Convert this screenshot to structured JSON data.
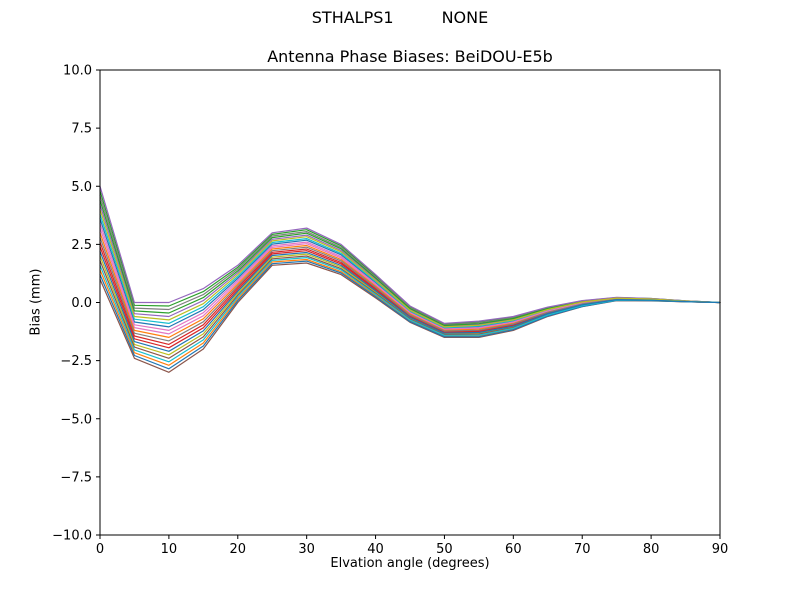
{
  "figure": {
    "background": "#ffffff",
    "suptitle": {
      "left": "STHALPS1",
      "right": "NONE"
    }
  },
  "chart_data": {
    "type": "line",
    "suptitle": "STHALPS1        NONE",
    "title": "Antenna Phase Biases: BeiDOU-E5b",
    "xlabel": "Elvation angle (degrees)",
    "ylabel": "Bias (mm)",
    "xlim": [
      0,
      90
    ],
    "ylim": [
      -10.0,
      10.0
    ],
    "grid": false,
    "legend": "none",
    "frame_color": "#000000",
    "xtick_values": [
      0,
      10,
      20,
      30,
      40,
      50,
      60,
      70,
      80,
      90
    ],
    "xtick_labels": [
      "0",
      "10",
      "20",
      "30",
      "40",
      "50",
      "60",
      "70",
      "80",
      "90"
    ],
    "ytick_values": [
      10.0,
      7.5,
      5.0,
      2.5,
      0.0,
      -2.5,
      -5.0,
      -7.5,
      -10.0
    ],
    "ytick_labels": [
      "10.0",
      "7.5",
      "5.0",
      "2.5",
      "0.0",
      "−2.5",
      "−5.0",
      "−7.5",
      "−10.0"
    ],
    "x": [
      0,
      5,
      10,
      15,
      20,
      25,
      30,
      35,
      40,
      45,
      50,
      55,
      60,
      65,
      70,
      75,
      80,
      85,
      90
    ],
    "series": [
      {
        "name": "line-01",
        "color": "#1f77b4",
        "values": [
          3.6,
          -0.84,
          -1.05,
          -0.31,
          1.04,
          2.51,
          2.68,
          2.05,
          0.85,
          -0.4,
          -1.11,
          -1.05,
          -0.81,
          -0.34,
          -0.01,
          0.17,
          0.14,
          0.06,
          0.0
        ]
      },
      {
        "name": "line-02",
        "color": "#ff7f0e",
        "values": [
          1.4,
          -2.16,
          -2.7,
          -1.74,
          0.16,
          1.74,
          1.85,
          1.33,
          0.3,
          -0.78,
          -1.44,
          -1.43,
          -1.14,
          -0.56,
          -0.15,
          0.09,
          0.08,
          0.03,
          0.0
        ]
      },
      {
        "name": "line-03",
        "color": "#2ca02c",
        "values": [
          4.8,
          -0.12,
          -0.15,
          0.47,
          1.52,
          2.93,
          3.13,
          2.44,
          1.15,
          -0.19,
          -0.93,
          -0.84,
          -0.63,
          -0.22,
          0.07,
          0.21,
          0.17,
          0.07,
          0.0
        ]
      },
      {
        "name": "line-04",
        "color": "#d62728",
        "values": [
          2.6,
          -1.44,
          -1.8,
          -0.96,
          0.64,
          2.16,
          2.3,
          1.72,
          0.6,
          -0.57,
          -1.26,
          -1.22,
          -0.96,
          -0.44,
          -0.08,
          0.14,
          0.11,
          0.05,
          0.0
        ]
      },
      {
        "name": "line-05",
        "color": "#9467bd",
        "values": [
          4.2,
          -0.48,
          -0.6,
          0.08,
          1.28,
          2.72,
          2.9,
          2.24,
          1.0,
          -0.29,
          -1.02,
          -0.94,
          -0.72,
          -0.28,
          0.03,
          0.19,
          0.15,
          0.06,
          0.0
        ]
      },
      {
        "name": "line-06",
        "color": "#8c564b",
        "values": [
          1.0,
          -2.4,
          -3.0,
          -2.0,
          0.0,
          1.6,
          1.7,
          1.2,
          0.2,
          -0.85,
          -1.5,
          -1.5,
          -1.2,
          -0.6,
          -0.18,
          0.08,
          0.07,
          0.03,
          0.0
        ]
      },
      {
        "name": "line-07",
        "color": "#e377c2",
        "values": [
          3.2,
          -1.08,
          -1.35,
          -0.57,
          0.88,
          2.37,
          2.53,
          1.92,
          0.75,
          -0.47,
          -1.17,
          -1.12,
          -0.87,
          -0.38,
          -0.04,
          0.16,
          0.13,
          0.05,
          0.0
        ]
      },
      {
        "name": "line-08",
        "color": "#7f7f7f",
        "values": [
          4.6,
          -0.24,
          -0.3,
          0.34,
          1.44,
          2.86,
          3.05,
          2.37,
          1.1,
          -0.22,
          -0.96,
          -0.87,
          -0.66,
          -0.24,
          0.05,
          0.21,
          0.16,
          0.07,
          0.0
        ]
      },
      {
        "name": "line-09",
        "color": "#bcbd22",
        "values": [
          2.0,
          -1.8,
          -2.25,
          -1.35,
          0.4,
          1.95,
          2.08,
          1.53,
          0.45,
          -0.68,
          -1.35,
          -1.33,
          -1.05,
          -0.5,
          -0.12,
          0.12,
          0.1,
          0.04,
          0.0
        ]
      },
      {
        "name": "line-10",
        "color": "#17becf",
        "values": [
          3.8,
          -0.72,
          -0.9,
          -0.18,
          1.12,
          2.58,
          2.75,
          2.11,
          0.9,
          -0.36,
          -1.08,
          -1.01,
          -0.78,
          -0.32,
          0.0,
          0.18,
          0.14,
          0.06,
          0.0
        ]
      },
      {
        "name": "line-11",
        "color": "#1f77b4",
        "values": [
          1.2,
          -2.28,
          -2.85,
          -1.87,
          0.08,
          1.67,
          1.78,
          1.27,
          0.25,
          -0.82,
          -1.47,
          -1.47,
          -1.17,
          -0.58,
          -0.17,
          0.09,
          0.08,
          0.03,
          0.0
        ]
      },
      {
        "name": "line-12",
        "color": "#ff7f0e",
        "values": [
          3.0,
          -1.2,
          -1.5,
          -0.7,
          0.8,
          2.3,
          2.45,
          1.85,
          0.7,
          -0.5,
          -1.2,
          -1.15,
          -0.9,
          -0.4,
          -0.05,
          0.15,
          0.12,
          0.05,
          0.0
        ]
      },
      {
        "name": "line-13",
        "color": "#2ca02c",
        "values": [
          4.4,
          -0.36,
          -0.45,
          0.21,
          1.36,
          2.79,
          2.98,
          2.31,
          1.05,
          -0.26,
          -0.99,
          -0.91,
          -0.69,
          -0.26,
          0.04,
          0.2,
          0.16,
          0.06,
          0.0
        ]
      },
      {
        "name": "line-14",
        "color": "#d62728",
        "values": [
          2.4,
          -1.56,
          -1.95,
          -1.09,
          0.56,
          2.09,
          2.23,
          1.66,
          0.55,
          -0.61,
          -1.29,
          -1.26,
          -0.99,
          -0.46,
          -0.09,
          0.13,
          0.11,
          0.04,
          0.0
        ]
      },
      {
        "name": "line-15",
        "color": "#9467bd",
        "values": [
          5.0,
          0.0,
          0.0,
          0.6,
          1.6,
          3.0,
          3.2,
          2.5,
          1.2,
          -0.15,
          -0.9,
          -0.8,
          -0.6,
          -0.2,
          0.08,
          0.22,
          0.17,
          0.07,
          0.0
        ]
      },
      {
        "name": "line-16",
        "color": "#8c564b",
        "values": [
          1.8,
          -1.92,
          -2.4,
          -1.48,
          0.32,
          1.88,
          2.0,
          1.46,
          0.4,
          -0.71,
          -1.38,
          -1.36,
          -1.08,
          -0.52,
          -0.13,
          0.11,
          0.09,
          0.04,
          0.0
        ]
      },
      {
        "name": "line-17",
        "color": "#e377c2",
        "values": [
          3.4,
          -0.96,
          -1.2,
          -0.44,
          0.96,
          2.44,
          2.6,
          1.98,
          0.8,
          -0.43,
          -1.14,
          -1.08,
          -0.84,
          -0.36,
          -0.02,
          0.16,
          0.13,
          0.05,
          0.0
        ]
      },
      {
        "name": "line-18",
        "color": "#7f7f7f",
        "values": [
          2.8,
          -1.32,
          -1.65,
          -0.83,
          0.72,
          2.23,
          2.38,
          1.79,
          0.65,
          -0.54,
          -1.23,
          -1.19,
          -0.93,
          -0.42,
          -0.06,
          0.14,
          0.12,
          0.05,
          0.0
        ]
      },
      {
        "name": "line-19",
        "color": "#bcbd22",
        "values": [
          4.0,
          -0.6,
          -0.75,
          -0.05,
          1.2,
          2.65,
          2.83,
          2.18,
          0.95,
          -0.33,
          -1.05,
          -0.98,
          -0.75,
          -0.3,
          0.02,
          0.19,
          0.15,
          0.06,
          0.0
        ]
      },
      {
        "name": "line-20",
        "color": "#17becf",
        "values": [
          1.6,
          -2.04,
          -2.55,
          -1.61,
          0.24,
          1.81,
          1.93,
          1.4,
          0.35,
          -0.75,
          -1.41,
          -1.4,
          -1.11,
          -0.54,
          -0.14,
          0.1,
          0.09,
          0.04,
          0.0
        ]
      },
      {
        "name": "line-21",
        "color": "#1f77b4",
        "values": [
          2.2,
          -1.68,
          -2.1,
          -1.22,
          0.48,
          2.02,
          2.15,
          1.59,
          0.5,
          -0.64,
          -1.32,
          -1.29,
          -1.02,
          -0.48,
          -0.1,
          0.12,
          0.1,
          0.04,
          0.0
        ]
      }
    ]
  }
}
